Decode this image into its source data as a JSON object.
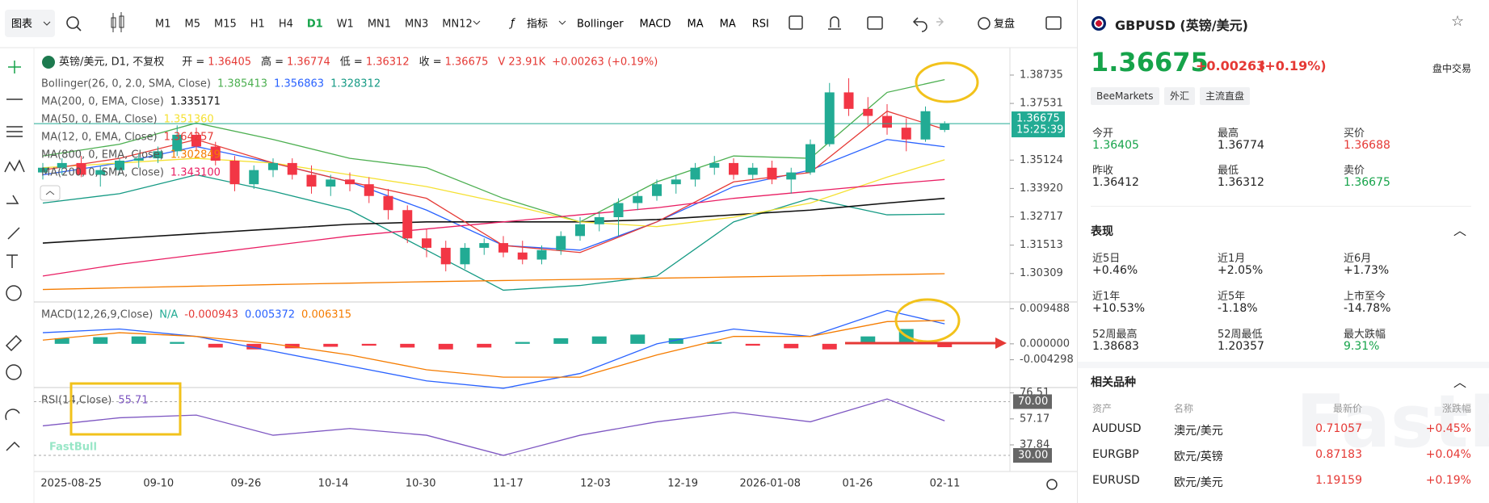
{
  "toolbar": {
    "chart_menu": "图表",
    "timeframes": [
      "M1",
      "M5",
      "M15",
      "H1",
      "H4",
      "D1",
      "W1",
      "MN1",
      "MN3",
      "MN12"
    ],
    "active_timeframe": "D1",
    "indicator_menu": "指标",
    "indicators": [
      "Bollinger",
      "MACD",
      "MA",
      "MA",
      "RSI"
    ],
    "replay": "复盘"
  },
  "chart_data": {
    "type": "candlestick",
    "title": "英镑/美元, D1, 不复权",
    "ohlc": [
      {
        "label": "开 =",
        "value": "1.36405"
      },
      {
        "label": "高 =",
        "value": "1.36774"
      },
      {
        "label": "低 =",
        "value": "1.36312"
      },
      {
        "label": "收 =",
        "value": "1.36675"
      }
    ],
    "volume": "V 23.91K",
    "change": "+0.00263 (+0.19%)",
    "up_color": "#22ab94",
    "down_color": "#f23645",
    "candles": [
      [
        1.346,
        1.35,
        1.343,
        1.348
      ],
      [
        1.348,
        1.352,
        1.345,
        1.35
      ],
      [
        1.35,
        1.353,
        1.344,
        1.345
      ],
      [
        1.345,
        1.349,
        1.34,
        1.347
      ],
      [
        1.347,
        1.352,
        1.345,
        1.351
      ],
      [
        1.351,
        1.354,
        1.348,
        1.352
      ],
      [
        1.352,
        1.357,
        1.35,
        1.355
      ],
      [
        1.355,
        1.366,
        1.353,
        1.362
      ],
      [
        1.362,
        1.365,
        1.355,
        1.357
      ],
      [
        1.357,
        1.359,
        1.349,
        1.351
      ],
      [
        1.351,
        1.353,
        1.338,
        1.341
      ],
      [
        1.341,
        1.349,
        1.339,
        1.347
      ],
      [
        1.347,
        1.352,
        1.344,
        1.35
      ],
      [
        1.35,
        1.352,
        1.343,
        1.345
      ],
      [
        1.345,
        1.349,
        1.337,
        1.34
      ],
      [
        1.34,
        1.345,
        1.336,
        1.343
      ],
      [
        1.343,
        1.346,
        1.338,
        1.341
      ],
      [
        1.341,
        1.344,
        1.333,
        1.336
      ],
      [
        1.336,
        1.339,
        1.326,
        1.33
      ],
      [
        1.33,
        1.332,
        1.316,
        1.318
      ],
      [
        1.318,
        1.322,
        1.31,
        1.314
      ],
      [
        1.314,
        1.317,
        1.304,
        1.307
      ],
      [
        1.307,
        1.316,
        1.305,
        1.314
      ],
      [
        1.314,
        1.318,
        1.311,
        1.316
      ],
      [
        1.316,
        1.319,
        1.31,
        1.312
      ],
      [
        1.312,
        1.317,
        1.307,
        1.309
      ],
      [
        1.309,
        1.315,
        1.307,
        1.313
      ],
      [
        1.313,
        1.321,
        1.311,
        1.319
      ],
      [
        1.319,
        1.327,
        1.317,
        1.324
      ],
      [
        1.324,
        1.329,
        1.321,
        1.327
      ],
      [
        1.327,
        1.335,
        1.319,
        1.333
      ],
      [
        1.333,
        1.338,
        1.33,
        1.336
      ],
      [
        1.336,
        1.343,
        1.334,
        1.341
      ],
      [
        1.341,
        1.345,
        1.337,
        1.343
      ],
      [
        1.343,
        1.35,
        1.34,
        1.348
      ],
      [
        1.348,
        1.353,
        1.345,
        1.35
      ],
      [
        1.35,
        1.352,
        1.343,
        1.345
      ],
      [
        1.345,
        1.35,
        1.343,
        1.348
      ],
      [
        1.348,
        1.351,
        1.341,
        1.343
      ],
      [
        1.343,
        1.348,
        1.337,
        1.346
      ],
      [
        1.346,
        1.36,
        1.345,
        1.358
      ],
      [
        1.358,
        1.384,
        1.357,
        1.38
      ],
      [
        1.38,
        1.386,
        1.37,
        1.373
      ],
      [
        1.373,
        1.378,
        1.366,
        1.37
      ],
      [
        1.37,
        1.375,
        1.362,
        1.365
      ],
      [
        1.365,
        1.369,
        1.355,
        1.36
      ],
      [
        1.36,
        1.374,
        1.359,
        1.372
      ],
      [
        1.36405,
        1.36774,
        1.36312,
        1.36675
      ]
    ],
    "line_x": [
      0,
      4,
      8,
      12,
      16,
      20,
      24,
      28,
      32,
      36,
      40,
      44,
      47
    ],
    "bollinger": {
      "name": "Bollinger(26, 0, 2.0, SMA, Close)",
      "bands": [
        {
          "value_text": "1.385413",
          "color": "#4caf50",
          "values": [
            1.353,
            1.358,
            1.367,
            1.36,
            1.352,
            1.348,
            1.335,
            1.325,
            1.342,
            1.353,
            1.352,
            1.38,
            1.3854
          ]
        },
        {
          "value_text": "1.356863",
          "color": "#2962ff",
          "values": [
            1.345,
            1.35,
            1.357,
            1.35,
            1.342,
            1.33,
            1.315,
            1.313,
            1.325,
            1.34,
            1.347,
            1.36,
            1.3569
          ]
        },
        {
          "value_text": "1.328312",
          "color": "#159a84",
          "values": [
            1.333,
            1.337,
            1.345,
            1.338,
            1.33,
            1.313,
            1.296,
            1.298,
            1.302,
            1.325,
            1.335,
            1.328,
            1.3283
          ]
        }
      ]
    },
    "mas": [
      {
        "name": "MA(200, 0, EMA, Close)",
        "value_text": "1.335171",
        "color": "#111111",
        "values": [
          1.316,
          1.318,
          1.32,
          1.322,
          1.324,
          1.325,
          1.325,
          1.325,
          1.326,
          1.328,
          1.33,
          1.333,
          1.335
        ]
      },
      {
        "name": "MA(50, 0, EMA, Close)",
        "value_text": "1.351360",
        "color": "#f5e133",
        "values": [
          1.348,
          1.35,
          1.352,
          1.35,
          1.345,
          1.34,
          1.333,
          1.325,
          1.323,
          1.327,
          1.333,
          1.344,
          1.3514
        ]
      },
      {
        "name": "MA(12, 0, EMA, Close)",
        "value_text": "1.364257",
        "color": "#e53935",
        "values": [
          1.347,
          1.352,
          1.36,
          1.35,
          1.342,
          1.335,
          1.315,
          1.312,
          1.325,
          1.342,
          1.346,
          1.372,
          1.3643
        ]
      },
      {
        "name": "MA(800, 0, EMA, Close)",
        "value_text": "1.302849",
        "color": "#f57c00",
        "values": [
          1.2963,
          1.297,
          1.2977,
          1.2984,
          1.299,
          1.2996,
          1.3001,
          1.3006,
          1.3011,
          1.3016,
          1.3021,
          1.3026,
          1.303
        ]
      },
      {
        "name": "MA(200, 0, SMA, Close)",
        "value_text": "1.343100",
        "color": "#e91e63",
        "values": [
          1.302,
          1.307,
          1.311,
          1.315,
          1.319,
          1.322,
          1.325,
          1.328,
          1.331,
          1.335,
          1.338,
          1.341,
          1.343
        ]
      }
    ],
    "ylim": [
      1.291,
      1.399
    ],
    "yticks": [
      1.38735,
      1.37531,
      1.35124,
      {
        "value": 1.3392,
        "label": "1.33920"
      },
      1.32717,
      1.31513,
      1.30309
    ],
    "last_price": 1.36675,
    "countdown": "15:25:39",
    "x_labels": [
      "2025-08-25",
      "09-10",
      "09-26",
      "10-14",
      "10-30",
      "11-17",
      "12-03",
      "12-19",
      "2026-01-08",
      "01-26",
      "02-11"
    ],
    "macd": {
      "title": "MACD(12,26,9,Close)",
      "status": "N/A",
      "value_texts": [
        "-0.000943",
        "0.005372",
        "0.006315"
      ],
      "ylim": [
        -0.0118,
        0.0113
      ],
      "yticks": [
        0.009488,
        {
          "value": 0,
          "label": "0.000000"
        },
        -0.004298
      ],
      "histogram_x": [
        1,
        3,
        5,
        7,
        9,
        11,
        13,
        15,
        17,
        19,
        21,
        23,
        25,
        27,
        29,
        31,
        33,
        35,
        37,
        39,
        41,
        43,
        45,
        47
      ],
      "histogram": [
        0.0015,
        0.0018,
        0.002,
        0.0005,
        -0.001,
        -0.0015,
        -0.0012,
        -0.0008,
        -0.0005,
        -0.001,
        -0.0015,
        -0.001,
        0.0005,
        0.0015,
        0.002,
        0.0025,
        0.0015,
        0.0005,
        -0.0005,
        -0.0012,
        -0.0015,
        0.002,
        0.004,
        -0.0009
      ],
      "lines": [
        {
          "color": "#2962ff",
          "values": [
            0.003,
            0.004,
            0.002,
            -0.002,
            -0.006,
            -0.01,
            -0.012,
            -0.008,
            0,
            0.004,
            0.002,
            0.009,
            0.0054
          ]
        },
        {
          "color": "#f57c00",
          "values": [
            0.001,
            0.003,
            0.002,
            0,
            -0.003,
            -0.007,
            -0.009,
            -0.009,
            -0.003,
            0.002,
            0.002,
            0.006,
            0.0063
          ]
        }
      ]
    },
    "rsi": {
      "title": "RSI(14,Close)",
      "value_text": "55.71",
      "color": "#7e57c2",
      "ylim": [
        18,
        80.5
      ],
      "yticks": [
        76.51,
        57.17,
        37.84
      ],
      "levels": [
        {
          "value": 70,
          "label": "70.00"
        },
        {
          "value": 30,
          "label": "30.00"
        }
      ],
      "values": [
        52,
        58,
        60,
        45,
        50,
        45,
        30,
        45,
        55,
        62,
        55,
        72,
        55.71
      ]
    }
  },
  "watermark": "FastBull",
  "info_panel": {
    "symbol": "GBPUSD (英镑/美元)",
    "price": "1.36675",
    "change": "+0.00263",
    "change_pct": "(+0.19%)",
    "session": "盘中交易",
    "tags": [
      "BeeMarkets",
      "外汇",
      "主流直盘"
    ],
    "quote": [
      {
        "label": "今开",
        "value": "1.36405"
      },
      {
        "label": "最高",
        "value": "1.36774"
      },
      {
        "label": "买价",
        "value": "1.36688"
      },
      {
        "label": "昨收",
        "value": "1.36412"
      },
      {
        "label": "最低",
        "value": "1.36312"
      },
      {
        "label": "卖价",
        "value": "1.36675"
      }
    ],
    "performance_title": "表现",
    "performance": [
      {
        "label": "近5日",
        "value": "+0.46%"
      },
      {
        "label": "近1月",
        "value": "+2.05%"
      },
      {
        "label": "近6月",
        "value": "+1.73%"
      },
      {
        "label": "近1年",
        "value": "+10.53%"
      },
      {
        "label": "近5年",
        "value": "-1.18%"
      },
      {
        "label": "上市至今",
        "value": "-14.78%"
      },
      {
        "label": "52周最高",
        "value": "1.38683"
      },
      {
        "label": "52周最低",
        "value": "1.20357"
      },
      {
        "label": "最大跌幅",
        "value": "9.31%"
      }
    ],
    "related_title": "相关品种",
    "related_header": [
      "资产",
      "名称",
      "最新价",
      "涨跌幅"
    ],
    "related": [
      [
        "AUDUSD",
        "澳元/美元",
        "0.71057",
        "+0.45%"
      ],
      [
        "EURGBP",
        "欧元/英镑",
        "0.87183",
        "+0.04%"
      ],
      [
        "EURUSD",
        "欧元/美元",
        "1.19159",
        "+0.19%"
      ]
    ]
  }
}
